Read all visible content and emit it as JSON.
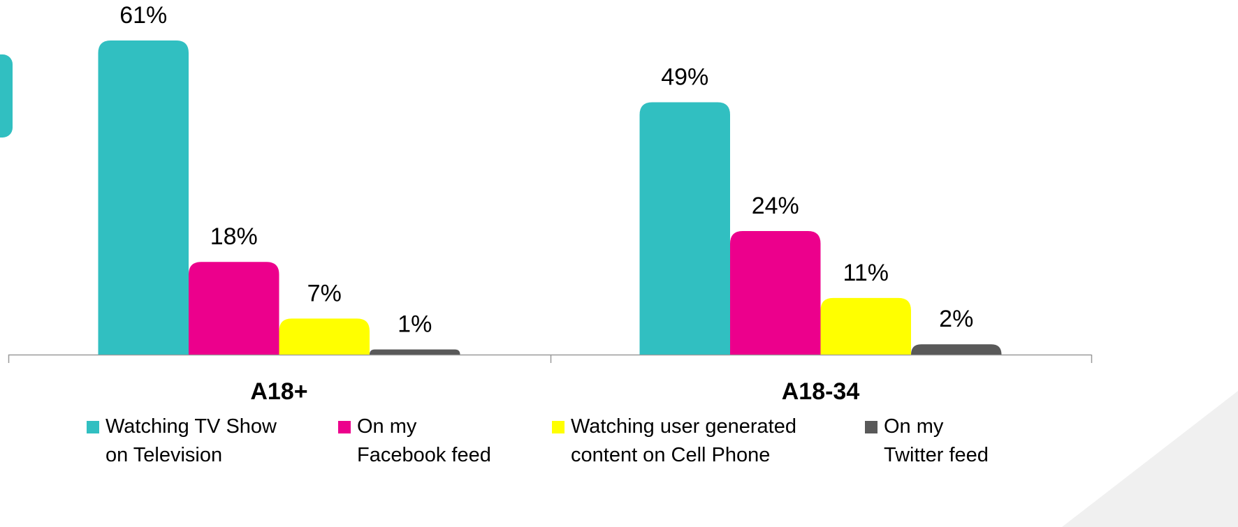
{
  "chart_data": {
    "type": "bar",
    "categories": [
      "A18+",
      "A18-34"
    ],
    "series": [
      {
        "name": "Watching TV Show on Television",
        "color": "#31bfc1",
        "values": [
          61,
          49
        ],
        "value_labels": [
          "61%",
          "49%"
        ]
      },
      {
        "name": "On my Facebook feed",
        "color": "#ec008c",
        "values": [
          18,
          24
        ],
        "value_labels": [
          "18%",
          "24%"
        ]
      },
      {
        "name": "Watching user generated content on Cell Phone",
        "color": "#ffff00",
        "values": [
          7,
          11
        ],
        "value_labels": [
          "7%",
          "11%"
        ]
      },
      {
        "name": "On my Twitter feed",
        "color": "#595959",
        "values": [
          1,
          2
        ],
        "value_labels": [
          "1%",
          "2%"
        ]
      }
    ],
    "legend": "bottom"
  }
}
